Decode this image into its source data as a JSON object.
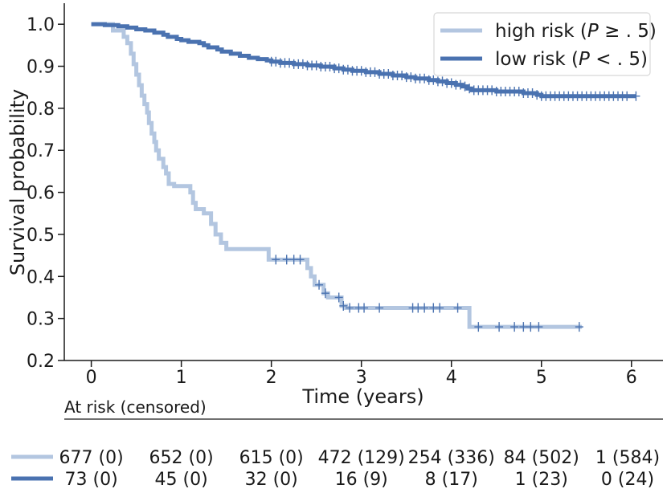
{
  "chart_data": {
    "type": "line",
    "title": "",
    "xlabel": "Time (years)",
    "ylabel": "Survival probability",
    "xlim": [
      -0.3,
      6.35
    ],
    "ylim": [
      0.2,
      1.05
    ],
    "xticks": [
      0,
      1,
      2,
      3,
      4,
      5,
      6
    ],
    "yticks": [
      0.2,
      0.3,
      0.4,
      0.5,
      0.6,
      0.7,
      0.8,
      0.9,
      1.0
    ],
    "xtick_labels": [
      "0",
      "1",
      "2",
      "3",
      "4",
      "5",
      "6"
    ],
    "ytick_labels": [
      "0.2",
      "0.3",
      "0.4",
      "0.5",
      "0.6",
      "0.7",
      "0.8",
      "0.9",
      "1.0"
    ],
    "legend": {
      "position": "top-right",
      "entries": [
        {
          "prefix": "high risk (",
          "italic": "P",
          "suffix": " ≥ . 5)"
        },
        {
          "prefix": "low risk (",
          "italic": "P",
          "suffix": " < . 5)"
        }
      ]
    },
    "series": [
      {
        "name": "high risk (P ≥ .5)",
        "color": "#b3c6e0",
        "steps": [
          [
            0,
            1.0
          ],
          [
            0.24,
            0.985
          ],
          [
            0.36,
            0.97
          ],
          [
            0.4,
            0.955
          ],
          [
            0.44,
            0.93
          ],
          [
            0.47,
            0.905
          ],
          [
            0.5,
            0.88
          ],
          [
            0.53,
            0.855
          ],
          [
            0.56,
            0.83
          ],
          [
            0.59,
            0.81
          ],
          [
            0.62,
            0.79
          ],
          [
            0.64,
            0.765
          ],
          [
            0.67,
            0.74
          ],
          [
            0.7,
            0.72
          ],
          [
            0.72,
            0.7
          ],
          [
            0.75,
            0.68
          ],
          [
            0.8,
            0.66
          ],
          [
            0.83,
            0.645
          ],
          [
            0.86,
            0.62
          ],
          [
            0.92,
            0.615
          ],
          [
            1.1,
            0.6
          ],
          [
            1.13,
            0.575
          ],
          [
            1.16,
            0.56
          ],
          [
            1.25,
            0.55
          ],
          [
            1.33,
            0.525
          ],
          [
            1.38,
            0.5
          ],
          [
            1.44,
            0.48
          ],
          [
            1.5,
            0.465
          ],
          [
            1.97,
            0.44
          ],
          [
            2.4,
            0.42
          ],
          [
            2.44,
            0.4
          ],
          [
            2.48,
            0.38
          ],
          [
            2.58,
            0.36
          ],
          [
            2.63,
            0.35
          ],
          [
            2.78,
            0.33
          ],
          [
            2.83,
            0.325
          ],
          [
            4.2,
            0.28
          ],
          [
            5.45,
            0.28
          ]
        ],
        "censor_times": [
          2.05,
          2.17,
          2.25,
          2.32,
          2.53,
          2.6,
          2.75,
          2.8,
          2.87,
          2.97,
          3.03,
          3.2,
          3.57,
          3.63,
          3.7,
          3.8,
          3.87,
          4.07,
          4.3,
          4.53,
          4.7,
          4.8,
          4.88,
          4.97,
          5.42
        ]
      },
      {
        "name": "low risk (P < .5)",
        "color": "#4a72b0",
        "steps": [
          [
            0,
            1.0
          ],
          [
            0.15,
            0.998
          ],
          [
            0.3,
            0.995
          ],
          [
            0.4,
            0.992
          ],
          [
            0.5,
            0.988
          ],
          [
            0.6,
            0.985
          ],
          [
            0.7,
            0.98
          ],
          [
            0.8,
            0.975
          ],
          [
            0.85,
            0.97
          ],
          [
            0.95,
            0.965
          ],
          [
            1.0,
            0.962
          ],
          [
            1.08,
            0.958
          ],
          [
            1.2,
            0.955
          ],
          [
            1.25,
            0.95
          ],
          [
            1.3,
            0.945
          ],
          [
            1.4,
            0.94
          ],
          [
            1.45,
            0.935
          ],
          [
            1.55,
            0.93
          ],
          [
            1.65,
            0.925
          ],
          [
            1.75,
            0.92
          ],
          [
            1.85,
            0.917
          ],
          [
            1.95,
            0.914
          ],
          [
            2.0,
            0.911
          ],
          [
            2.1,
            0.908
          ],
          [
            2.25,
            0.905
          ],
          [
            2.4,
            0.902
          ],
          [
            2.55,
            0.899
          ],
          [
            2.7,
            0.895
          ],
          [
            2.8,
            0.892
          ],
          [
            2.9,
            0.889
          ],
          [
            3.05,
            0.886
          ],
          [
            3.2,
            0.882
          ],
          [
            3.35,
            0.878
          ],
          [
            3.5,
            0.874
          ],
          [
            3.6,
            0.871
          ],
          [
            3.75,
            0.867
          ],
          [
            3.85,
            0.864
          ],
          [
            3.95,
            0.86
          ],
          [
            4.05,
            0.856
          ],
          [
            4.12,
            0.852
          ],
          [
            4.18,
            0.847
          ],
          [
            4.22,
            0.843
          ],
          [
            4.5,
            0.84
          ],
          [
            4.8,
            0.836
          ],
          [
            4.95,
            0.832
          ],
          [
            5.0,
            0.829
          ],
          [
            6.05,
            0.829
          ]
        ],
        "censor_times": [
          2.0,
          2.05,
          2.1,
          2.15,
          2.2,
          2.25,
          2.3,
          2.35,
          2.4,
          2.45,
          2.5,
          2.55,
          2.6,
          2.65,
          2.7,
          2.75,
          2.8,
          2.85,
          2.9,
          2.95,
          3.0,
          3.05,
          3.1,
          3.15,
          3.2,
          3.25,
          3.3,
          3.35,
          3.4,
          3.45,
          3.5,
          3.55,
          3.6,
          3.65,
          3.7,
          3.75,
          3.8,
          3.85,
          3.9,
          3.95,
          4.0,
          4.05,
          4.1,
          4.15,
          4.2,
          4.25,
          4.3,
          4.35,
          4.4,
          4.45,
          4.5,
          4.55,
          4.6,
          4.65,
          4.7,
          4.75,
          4.8,
          4.85,
          4.9,
          4.95,
          5.0,
          5.05,
          5.1,
          5.15,
          5.2,
          5.25,
          5.3,
          5.35,
          5.4,
          5.45,
          5.5,
          5.55,
          5.6,
          5.65,
          5.7,
          5.75,
          5.8,
          5.85,
          5.9,
          5.95,
          6.05
        ]
      }
    ],
    "risk_table": {
      "title": "At risk (censored)",
      "times": [
        0,
        1,
        2,
        3,
        4,
        5,
        6
      ],
      "rows": [
        {
          "color": "#b3c6e0",
          "cells": [
            "677 (0)",
            "652 (0)",
            "615 (0)",
            "472 (129)",
            "254 (336)",
            "84 (502)",
            "1 (584)"
          ]
        },
        {
          "color": "#4a72b0",
          "cells": [
            "73 (0)",
            "45 (0)",
            "32 (0)",
            "16 (9)",
            "8 (17)",
            "1 (23)",
            "0 (24)"
          ]
        }
      ]
    }
  }
}
